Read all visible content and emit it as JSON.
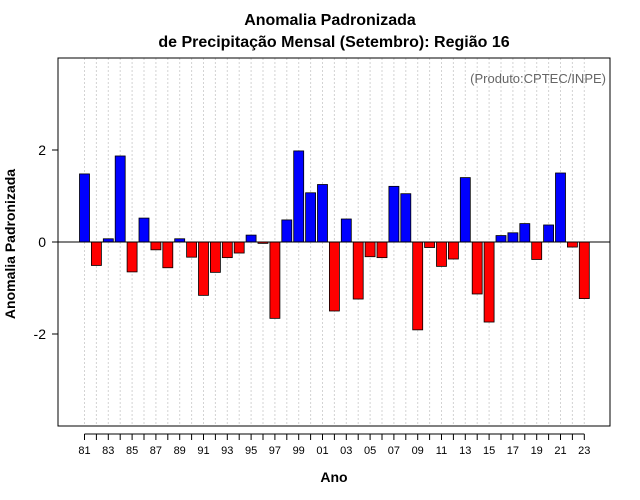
{
  "chart_data": {
    "type": "bar",
    "title_line1": "Anomalia Padronizada",
    "title_line2": "de Precipitação Mensal (Setembro): Região 16",
    "xlabel": "Ano",
    "ylabel": "Anomalia Padronizada",
    "annotation": "(Produto:CPTEC/INPE)",
    "ylim": [
      -4,
      4
    ],
    "yticks": [
      -2,
      0,
      2
    ],
    "ytick_labels": [
      "-2",
      "0",
      "2"
    ],
    "grid": true,
    "colors": {
      "positive": "#0000ff",
      "negative": "#ff0000",
      "outline": "#000000",
      "grid": "#d3d3d3"
    },
    "categories": [
      "81",
      "82",
      "83",
      "84",
      "85",
      "86",
      "87",
      "88",
      "89",
      "90",
      "91",
      "92",
      "93",
      "94",
      "95",
      "96",
      "97",
      "98",
      "99",
      "00",
      "01",
      "02",
      "03",
      "04",
      "05",
      "06",
      "07",
      "08",
      "09",
      "10",
      "11",
      "12",
      "13",
      "14",
      "15",
      "16",
      "17",
      "18",
      "19",
      "20",
      "21",
      "22",
      "23"
    ],
    "values": [
      1.48,
      -0.51,
      0.07,
      1.87,
      -0.65,
      0.52,
      -0.17,
      -0.56,
      0.07,
      -0.33,
      -1.16,
      -0.66,
      -0.34,
      -0.24,
      0.15,
      -0.03,
      -1.66,
      0.48,
      1.98,
      1.07,
      1.25,
      -1.5,
      0.5,
      -1.24,
      -0.32,
      -0.34,
      1.21,
      1.05,
      -1.91,
      -0.12,
      -0.53,
      -0.37,
      1.4,
      -1.13,
      -1.74,
      0.14,
      0.2,
      0.4,
      -0.38,
      0.37,
      1.5,
      -0.11,
      -1.23
    ],
    "tick_labels": [
      "81",
      "83",
      "85",
      "87",
      "89",
      "91",
      "93",
      "95",
      "97",
      "99",
      "01",
      "03",
      "05",
      "07",
      "09",
      "11",
      "13",
      "15",
      "17",
      "19",
      "21",
      "23"
    ]
  }
}
